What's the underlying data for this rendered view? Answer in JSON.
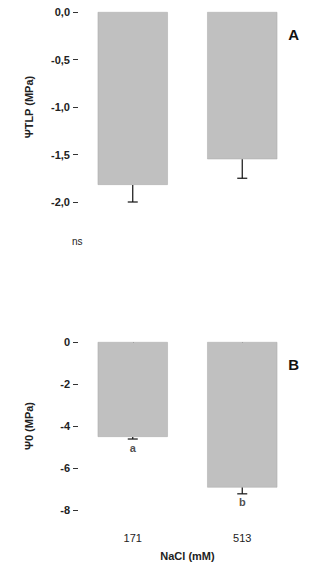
{
  "chart_data": [
    {
      "type": "bar",
      "title": "A",
      "y_label": "ΨTLP (MPa)",
      "categories": [
        "171",
        "513"
      ],
      "values": [
        -1.82,
        -1.55
      ],
      "errors": [
        0.18,
        0.2
      ],
      "color": "#c0c0c0",
      "ylim": [
        -2,
        0
      ],
      "yticks": [
        {
          "value": 0,
          "label": "0,0"
        },
        {
          "value": -0.5,
          "label": "-0,5"
        },
        {
          "value": -1,
          "label": "-1,0"
        },
        {
          "value": -1.5,
          "label": "-1,5"
        },
        {
          "value": -2,
          "label": "-2,0"
        }
      ],
      "annotations": [
        "ns"
      ],
      "tick_labels": "y"
    },
    {
      "type": "bar",
      "title": "B",
      "y_label": "Ψ0 (MPa)",
      "x_label": "NaCl (mM)",
      "categories": [
        "171",
        "513"
      ],
      "values": [
        -4.52,
        -6.93
      ],
      "errors": [
        0.1,
        0.3
      ],
      "letters": [
        "a",
        "b"
      ],
      "color": "#c0c0c0",
      "ylim": [
        -8,
        0
      ],
      "yticks": [
        0,
        -2,
        -4,
        -6,
        -8
      ]
    }
  ]
}
